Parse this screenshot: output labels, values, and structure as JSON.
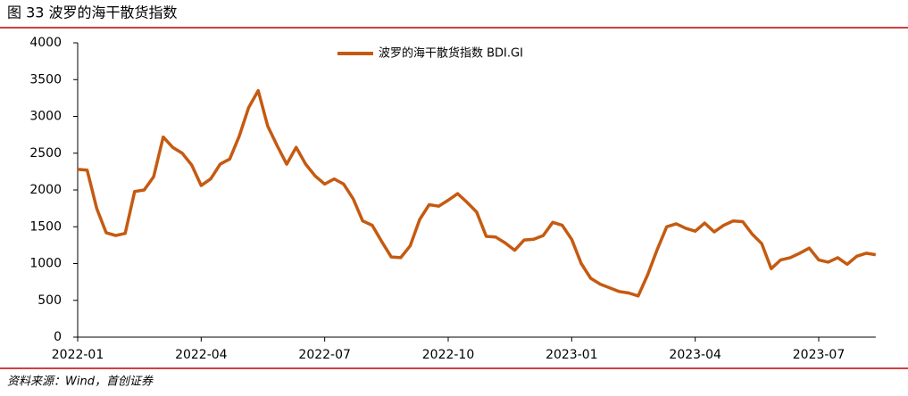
{
  "chart_data": {
    "type": "line",
    "title": "图 33 波罗的海干散货指数",
    "source": "资料来源：Wind，首创证券",
    "categories": [
      "2022-01",
      null,
      null,
      null,
      null,
      null,
      null,
      null,
      null,
      null,
      null,
      null,
      null,
      "2022-04",
      null,
      null,
      null,
      null,
      null,
      null,
      null,
      null,
      null,
      null,
      null,
      null,
      "2022-07",
      null,
      null,
      null,
      null,
      null,
      null,
      null,
      null,
      null,
      null,
      null,
      null,
      "2022-10",
      null,
      null,
      null,
      null,
      null,
      null,
      null,
      null,
      null,
      null,
      null,
      null,
      "2023-01",
      null,
      null,
      null,
      null,
      null,
      null,
      null,
      null,
      null,
      null,
      null,
      null,
      "2023-04",
      null,
      null,
      null,
      null,
      null,
      null,
      null,
      null,
      null,
      null,
      null,
      null,
      "2023-07",
      null,
      null,
      null,
      null,
      null,
      null
    ],
    "series": [
      {
        "name": "波罗的海干散货指数 BDI.GI",
        "color": "#c55a11",
        "values": [
          2280,
          2270,
          1750,
          1420,
          1380,
          1410,
          1980,
          2000,
          2180,
          2720,
          2580,
          2500,
          2340,
          2060,
          2150,
          2350,
          2420,
          2730,
          3120,
          3350,
          2870,
          2600,
          2350,
          2580,
          2350,
          2190,
          2080,
          2150,
          2080,
          1880,
          1580,
          1520,
          1300,
          1090,
          1080,
          1240,
          1600,
          1800,
          1780,
          1860,
          1950,
          1830,
          1700,
          1370,
          1360,
          1280,
          1180,
          1320,
          1330,
          1380,
          1560,
          1520,
          1330,
          1000,
          800,
          720,
          670,
          620,
          600,
          560,
          850,
          1190,
          1500,
          1540,
          1480,
          1440,
          1550,
          1430,
          1520,
          1580,
          1570,
          1400,
          1270,
          930,
          1050,
          1080,
          1140,
          1210,
          1050,
          1020,
          1080,
          990,
          1100,
          1140,
          1120
        ]
      }
    ],
    "ylim": [
      0,
      4000
    ],
    "yticks": [
      0,
      500,
      1000,
      1500,
      2000,
      2500,
      3000,
      3500,
      4000
    ],
    "grid": false
  }
}
